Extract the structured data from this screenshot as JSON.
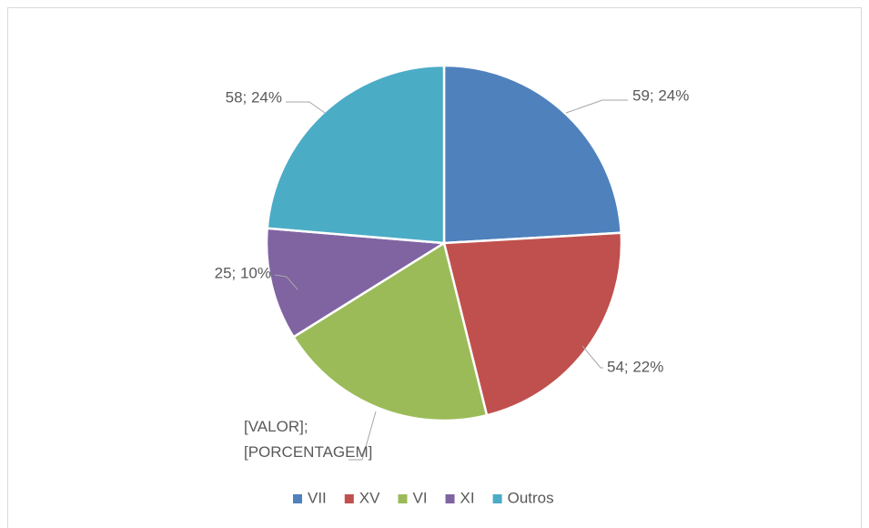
{
  "chart_data": {
    "type": "pie",
    "categories": [
      "VII",
      "XV",
      "VI",
      "XI",
      "Outros"
    ],
    "values": [
      59,
      54,
      49,
      25,
      58
    ],
    "value_labels": [
      "59; 24%",
      "54; 22%",
      "[VALOR];\n[PORCENTAGEM]",
      "25; 10%",
      "58; 24%"
    ],
    "colors": [
      "#4f81bd",
      "#c0504d",
      "#9bbb59",
      "#8064a2",
      "#4bacc6"
    ],
    "legend": "bottom"
  }
}
